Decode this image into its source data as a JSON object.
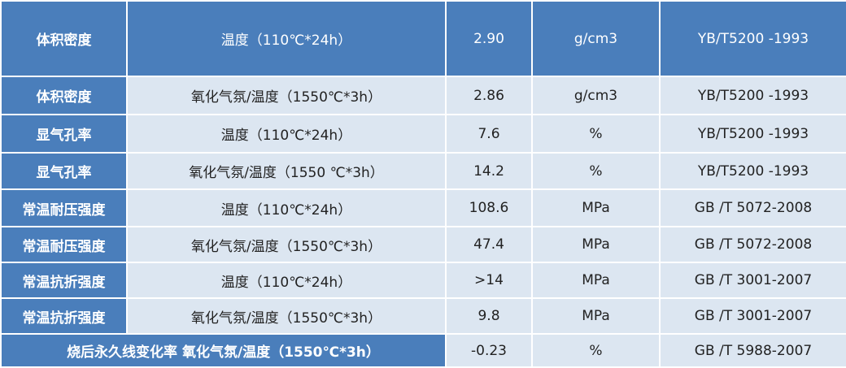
{
  "table": {
    "header": [
      "体积密度",
      "温度（110℃*24h）",
      "2.90",
      "g/cm3",
      "YB/T5200 -1993"
    ],
    "rows": [
      [
        "体积密度",
        "氧化气氛/温度（1550℃*3h）",
        "2.86",
        "g/cm3",
        "YB/T5200 -1993"
      ],
      [
        "显气孔率",
        "温度（110℃*24h）",
        "7.6",
        "%",
        "YB/T5200 -1993"
      ],
      [
        "显气孔率",
        "氧化气氛/温度（1550 ℃*3h）",
        "14.2",
        "%",
        "YB/T5200 -1993"
      ],
      [
        "常温耐压强度",
        "温度（110℃*24h）",
        "108.6",
        "MPa",
        "GB /T 5072-2008"
      ],
      [
        "常温耐压强度",
        "氧化气氛/温度（1550℃*3h）",
        "47.4",
        "MPa",
        "GB /T 5072-2008"
      ],
      [
        "常温抗折强度",
        "温度（110℃*24h）",
        ">14",
        "MPa",
        "GB /T 3001-2007"
      ],
      [
        "常温抗折强度",
        "氧化气氛/温度（1550℃*3h）",
        "9.8",
        "MPa",
        "GB /T 3001-2007"
      ],
      [
        "烧后永久线变化率 氧化气氛/温度（1550℃*3h）",
        "-0.23",
        "%",
        "GB /T 5988-2007"
      ]
    ]
  }
}
